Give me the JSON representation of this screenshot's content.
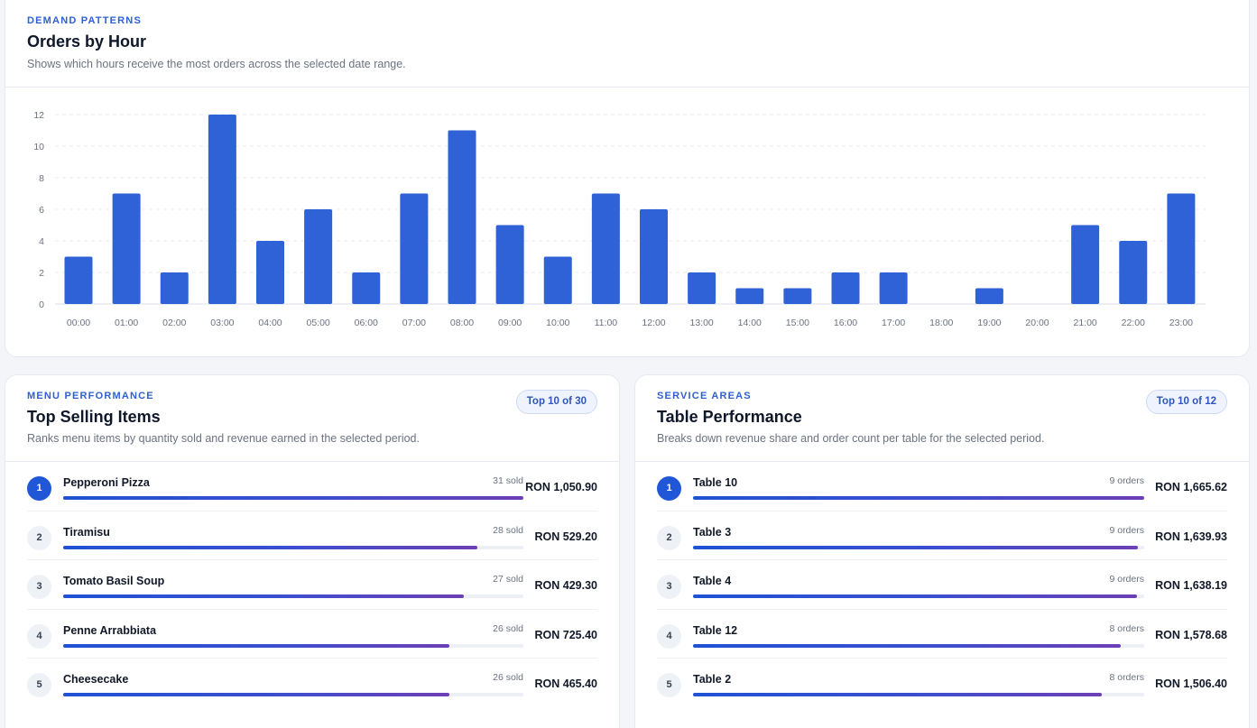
{
  "hours": {
    "eyebrow": "DEMAND PATTERNS",
    "title": "Orders by Hour",
    "subtitle": "Shows which hours receive the most orders across the selected date range.",
    "chart_data": {
      "type": "bar",
      "categories": [
        "00:00",
        "01:00",
        "02:00",
        "03:00",
        "04:00",
        "05:00",
        "06:00",
        "07:00",
        "08:00",
        "09:00",
        "10:00",
        "11:00",
        "12:00",
        "13:00",
        "14:00",
        "15:00",
        "16:00",
        "17:00",
        "18:00",
        "19:00",
        "20:00",
        "21:00",
        "22:00",
        "23:00"
      ],
      "values": [
        3,
        7,
        2,
        12,
        4,
        6,
        2,
        7,
        11,
        5,
        3,
        7,
        6,
        2,
        1,
        1,
        2,
        2,
        0,
        1,
        0,
        5,
        4,
        7
      ],
      "yticks": [
        0,
        2,
        4,
        6,
        8,
        10,
        12
      ],
      "ylim": [
        0,
        12
      ],
      "grid": true,
      "bar_color": "#2f62d6"
    }
  },
  "items": {
    "eyebrow": "MENU PERFORMANCE",
    "title": "Top Selling Items",
    "subtitle": "Ranks menu items by quantity sold and revenue earned in the selected period.",
    "badge": "Top 10 of 30",
    "rows": [
      {
        "rank": "1",
        "name": "Pepperoni Pizza",
        "count": "31 sold",
        "value": "RON 1,050.90",
        "share": 1.0
      },
      {
        "rank": "2",
        "name": "Tiramisu",
        "count": "28 sold",
        "value": "RON 529.20",
        "share": 0.9
      },
      {
        "rank": "3",
        "name": "Tomato Basil Soup",
        "count": "27 sold",
        "value": "RON 429.30",
        "share": 0.87
      },
      {
        "rank": "4",
        "name": "Penne Arrabbiata",
        "count": "26 sold",
        "value": "RON 725.40",
        "share": 0.84
      },
      {
        "rank": "5",
        "name": "Cheesecake",
        "count": "26 sold",
        "value": "RON 465.40",
        "share": 0.84
      }
    ]
  },
  "tables": {
    "eyebrow": "SERVICE AREAS",
    "title": "Table Performance",
    "subtitle": "Breaks down revenue share and order count per table for the selected period.",
    "badge": "Top 10 of 12",
    "rows": [
      {
        "rank": "1",
        "name": "Table 10",
        "count": "9 orders",
        "value": "RON 1,665.62",
        "share": 1.0
      },
      {
        "rank": "2",
        "name": "Table 3",
        "count": "9 orders",
        "value": "RON 1,639.93",
        "share": 0.985
      },
      {
        "rank": "3",
        "name": "Table 4",
        "count": "9 orders",
        "value": "RON 1,638.19",
        "share": 0.984
      },
      {
        "rank": "4",
        "name": "Table 12",
        "count": "8 orders",
        "value": "RON 1,578.68",
        "share": 0.948
      },
      {
        "rank": "5",
        "name": "Table 2",
        "count": "8 orders",
        "value": "RON 1,506.40",
        "share": 0.905
      }
    ]
  }
}
